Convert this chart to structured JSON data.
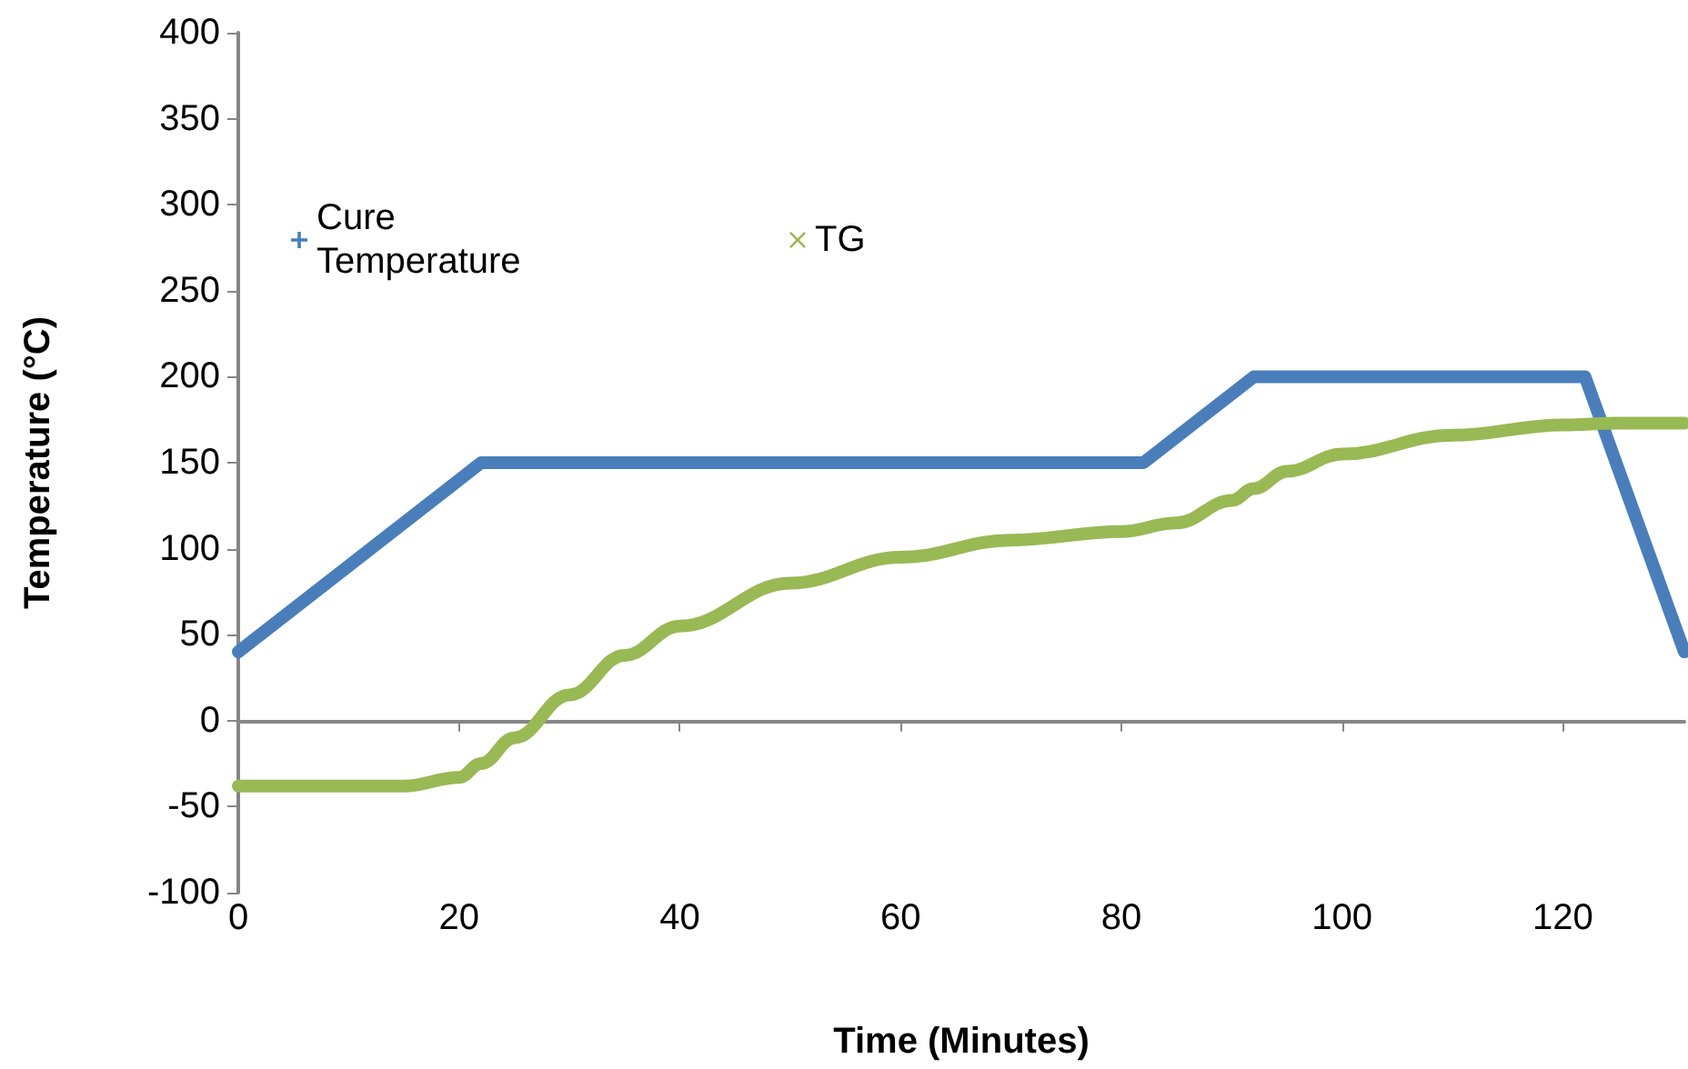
{
  "chart_data": {
    "type": "line",
    "xlabel": "Time (Minutes)",
    "ylabel": "Temperature (°C)",
    "xlim": [
      0,
      131
    ],
    "xticks": [
      0,
      20,
      40,
      60,
      80,
      100,
      120
    ],
    "ylim": [
      -100,
      400
    ],
    "yticks": [
      -100,
      -50,
      0,
      50,
      100,
      150,
      200,
      250,
      300,
      350,
      400
    ],
    "legend": "top left",
    "line_style": "solid",
    "series": [
      {
        "name": "Cure Temperature",
        "color": "#4a7ebb",
        "x": [
          0,
          22,
          82,
          92,
          122,
          131
        ],
        "values": [
          40,
          150,
          150,
          200,
          200,
          40
        ]
      },
      {
        "name": "TG",
        "color": "#98b954",
        "x": [
          0,
          15,
          20,
          22,
          25,
          30,
          35,
          40,
          50,
          60,
          70,
          80,
          85,
          90,
          92,
          95,
          100,
          110,
          120,
          125,
          131
        ],
        "values": [
          -38,
          -38,
          -33,
          -25,
          -10,
          15,
          38,
          55,
          80,
          95,
          105,
          110,
          115,
          128,
          135,
          145,
          155,
          166,
          172,
          173,
          173
        ]
      }
    ]
  }
}
